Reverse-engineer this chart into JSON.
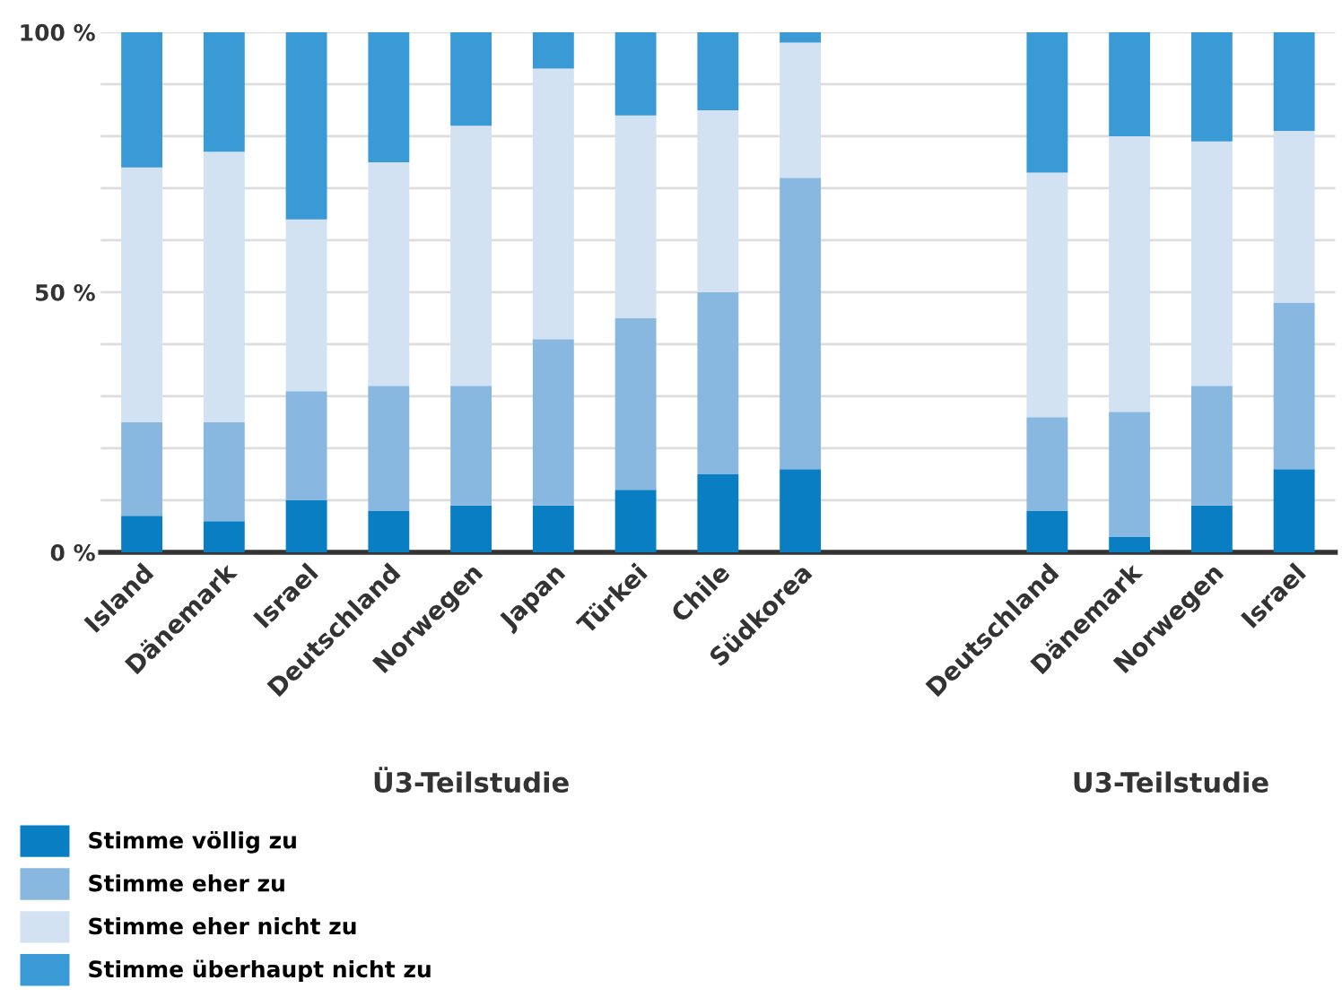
{
  "chart_data": {
    "type": "bar",
    "stacked": true,
    "categories": [
      "Island",
      "Dänemark",
      "Israel",
      "Deutschland",
      "Norwegen",
      "Japan",
      "Türkei",
      "Chile",
      "Südkorea",
      null,
      null,
      "Deutschland",
      "Dänemark",
      "Norwegen",
      "Israel"
    ],
    "series": [
      {
        "name": "Stimme völlig zu",
        "color": "#0a7ec2",
        "values": [
          7,
          6,
          10,
          8,
          9,
          9,
          12,
          15,
          16,
          null,
          null,
          8,
          3,
          9,
          16
        ]
      },
      {
        "name": "Stimme eher zu",
        "color": "#88b8e0",
        "values": [
          18,
          19,
          21,
          24,
          23,
          32,
          33,
          35,
          56,
          null,
          null,
          18,
          24,
          23,
          32
        ]
      },
      {
        "name": "Stimme eher nicht zu",
        "color": "#d2e2f2",
        "values": [
          49,
          52,
          33,
          43,
          50,
          52,
          39,
          35,
          26,
          null,
          null,
          47,
          53,
          47,
          33
        ]
      },
      {
        "name": "Stimme überhaupt nicht zu",
        "color": "#3a9ad6",
        "values": [
          26,
          23,
          36,
          25,
          18,
          7,
          16,
          15,
          2,
          null,
          null,
          27,
          20,
          21,
          19
        ]
      }
    ],
    "ylim": [
      0,
      100
    ],
    "yticks": [
      {
        "value": 0,
        "label": "0 %"
      },
      {
        "value": 10,
        "label": null
      },
      {
        "value": 20,
        "label": null
      },
      {
        "value": 30,
        "label": null
      },
      {
        "value": 40,
        "label": null
      },
      {
        "value": 50,
        "label": "50 %"
      },
      {
        "value": 60,
        "label": null
      },
      {
        "value": 70,
        "label": null
      },
      {
        "value": 80,
        "label": null
      },
      {
        "value": 90,
        "label": null
      },
      {
        "value": 100,
        "label": "100 %"
      }
    ],
    "grid": "y",
    "legend": "bottom",
    "annotations": [
      "Ü3-Teilstudie",
      "U3-Teilstudie"
    ]
  }
}
